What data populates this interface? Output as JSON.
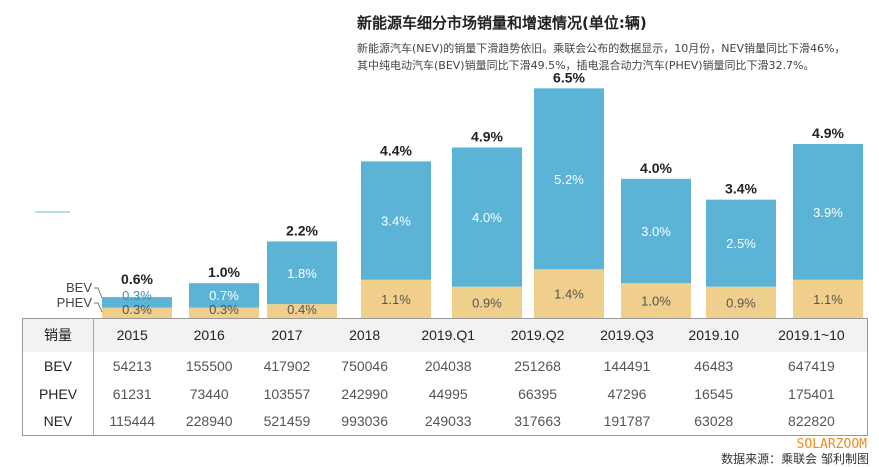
{
  "title": "新能源车细分市场销量和增速情况(单位:辆)",
  "subtitle_lines": [
    "新能源汽车(NEV)的销量下滑趋势依旧。乘联会公布的数据显示，10月份，NEV销量同比下滑46%，",
    "其中纯电动汽车(BEV)销量同比下滑49.5%，插电混合动力汽车(PHEV)销量同比下滑32.7%。"
  ],
  "colors": {
    "bev": "#5bb3d5",
    "phev": "#f0cf8c"
  },
  "chart_data": {
    "type": "bar",
    "stacked": true,
    "categories": [
      "2015",
      "2016",
      "2017",
      "2018",
      "2019.Q1",
      "2019.Q2",
      "2019.Q3",
      "2019.10",
      "2019.1~10"
    ],
    "series": [
      {
        "name": "PHEV",
        "values": [
          0.3,
          0.3,
          0.4,
          1.1,
          0.9,
          1.4,
          1.0,
          0.9,
          1.1
        ],
        "labels": [
          "0.3%",
          "0.3%",
          "0.4%",
          "1.1%",
          "0.9%",
          "1.4%",
          "1.0%",
          "0.9%",
          "1.1%"
        ]
      },
      {
        "name": "BEV",
        "values": [
          0.3,
          0.7,
          1.8,
          3.4,
          4.0,
          5.2,
          3.0,
          2.5,
          3.9
        ],
        "labels": [
          "0.3%",
          "0.7%",
          "1.8%",
          "3.4%",
          "4.0%",
          "5.2%",
          "3.0%",
          "2.5%",
          "3.9%"
        ]
      }
    ],
    "totals": [
      "0.6%",
      "1.0%",
      "2.2%",
      "4.4%",
      "4.9%",
      "6.5%",
      "4.0%",
      "3.4%",
      "4.9%"
    ],
    "legend": [
      "BEV",
      "PHEV"
    ],
    "unit": "%"
  },
  "table": {
    "corner": "销量",
    "columns": [
      "2015",
      "2016",
      "2017",
      "2018",
      "2019.Q1",
      "2019.Q2",
      "2019.Q3",
      "2019.10",
      "2019.1~10"
    ],
    "rows": [
      {
        "label": "BEV",
        "values": [
          "54213",
          "155500",
          "417902",
          "750046",
          "204038",
          "251268",
          "144491",
          "46483",
          "647419"
        ]
      },
      {
        "label": "PHEV",
        "values": [
          "61231",
          "73440",
          "103557",
          "242990",
          "44995",
          "66395",
          "47296",
          "16545",
          "175401"
        ]
      },
      {
        "label": "NEV",
        "values": [
          "115444",
          "228940",
          "521459",
          "993036",
          "249033",
          "317663",
          "191787",
          "63028",
          "822820"
        ]
      }
    ]
  },
  "watermark": "SOLARZOOM",
  "source": "数据来源：乘联会  邹利制图"
}
